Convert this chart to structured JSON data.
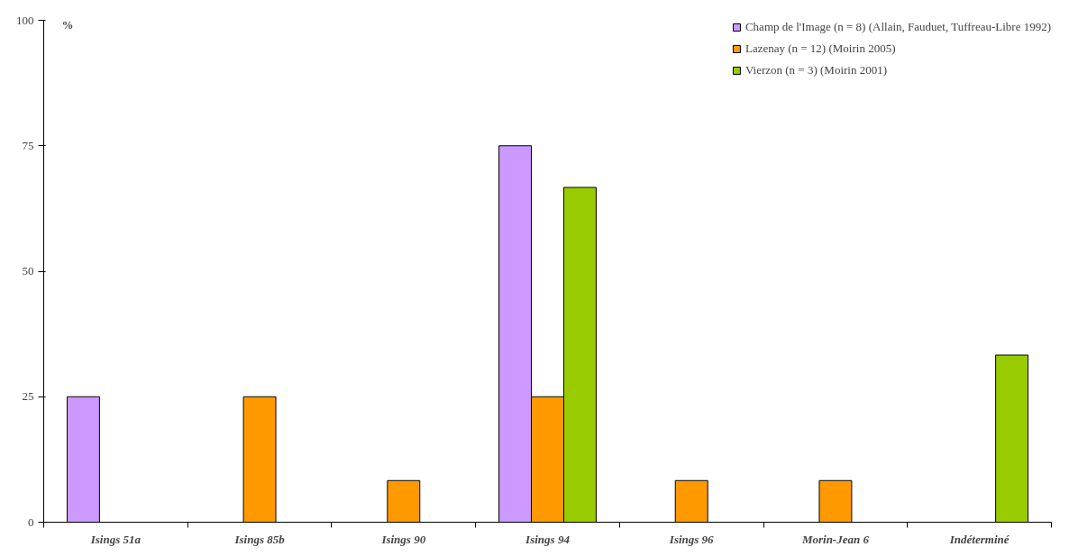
{
  "chart_data": {
    "type": "bar",
    "ylabel": "%",
    "categories": [
      "Isings 51a",
      "Isings 85b",
      "Isings 90",
      "Isings 94",
      "Isings 96",
      "Morin-Jean 6",
      "Indéterminé"
    ],
    "series": [
      {
        "name": "Champ de l'Image (n = 8) (Allain, Fauduet, Tuffreau-Libre 1992)",
        "color": "#cc99ff",
        "values": [
          25,
          null,
          null,
          75,
          null,
          null,
          null
        ]
      },
      {
        "name": "Lazenay (n = 12) (Moirin 2005)",
        "color": "#ff9900",
        "values": [
          null,
          25,
          8.3,
          25,
          8.3,
          8.3,
          null
        ]
      },
      {
        "name": "Vierzon (n = 3) (Moirin 2001)",
        "color": "#99cc00",
        "values": [
          null,
          null,
          null,
          66.7,
          null,
          null,
          33.3
        ]
      }
    ],
    "ylim": [
      0,
      100
    ],
    "yticks": [
      0,
      25,
      50,
      75,
      100
    ],
    "grid": false,
    "legend": "top right"
  }
}
